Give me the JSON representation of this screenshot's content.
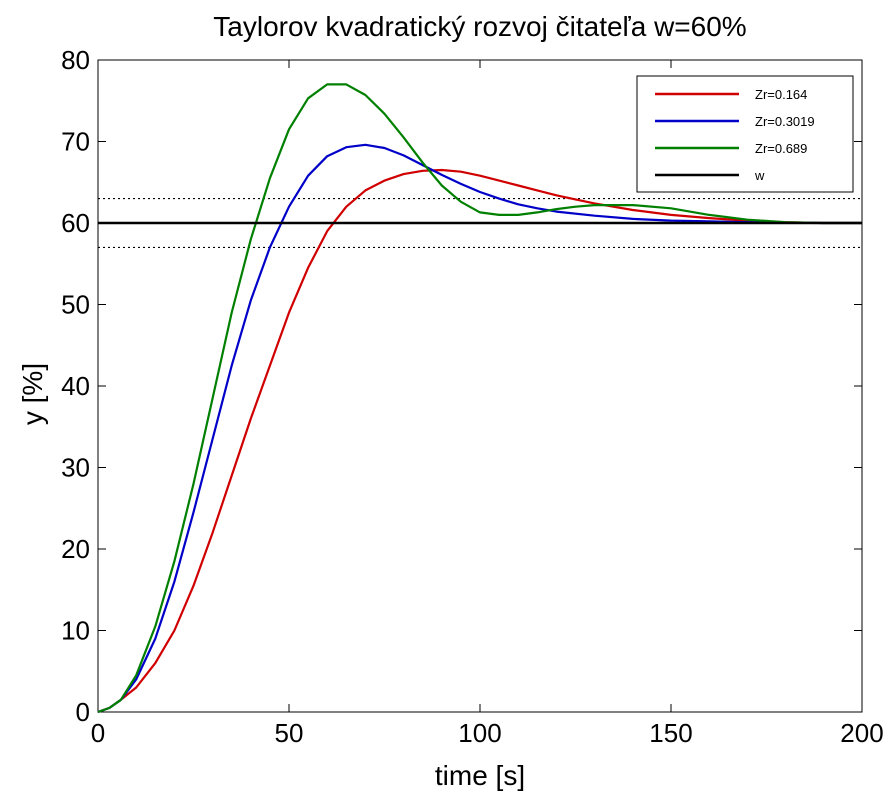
{
  "chart_data": {
    "type": "line",
    "title": "Taylorov kvadratický rozvoj čitateľa w=60%",
    "xlabel": "time [s]",
    "ylabel": "y [%]",
    "xlim": [
      0,
      200
    ],
    "ylim": [
      0,
      80
    ],
    "xticks": [
      "0",
      "50",
      "100",
      "150",
      "200"
    ],
    "yticks": [
      "0",
      "10",
      "20",
      "30",
      "40",
      "50",
      "60",
      "70",
      "80"
    ],
    "grid": false,
    "legend_position": "top-right",
    "setpoint": 60,
    "tolerance_band": [
      57,
      63
    ],
    "series": [
      {
        "name": "Zr=0.164",
        "color": "#d00000",
        "x": [
          0,
          3,
          6,
          10,
          15,
          20,
          25,
          30,
          35,
          40,
          45,
          50,
          55,
          60,
          65,
          70,
          75,
          80,
          85,
          90,
          95,
          100,
          105,
          110,
          115,
          120,
          125,
          130,
          140,
          150,
          160,
          170,
          180,
          190,
          200
        ],
        "y": [
          0,
          0.5,
          1.5,
          3,
          6,
          10,
          15.5,
          22,
          29,
          36,
          42.5,
          49,
          54.5,
          59,
          62,
          64,
          65.2,
          66,
          66.4,
          66.5,
          66.3,
          65.8,
          65.2,
          64.6,
          64.0,
          63.4,
          62.9,
          62.4,
          61.6,
          61.0,
          60.6,
          60.3,
          60.1,
          60.0,
          60.0
        ]
      },
      {
        "name": "Zr=0.3019",
        "color": "#0000c8",
        "x": [
          0,
          3,
          6,
          10,
          15,
          20,
          25,
          30,
          35,
          40,
          45,
          50,
          55,
          60,
          65,
          70,
          75,
          80,
          85,
          90,
          95,
          100,
          105,
          110,
          115,
          120,
          130,
          140,
          150,
          160,
          170,
          180,
          190,
          200
        ],
        "y": [
          0,
          0.5,
          1.5,
          4,
          9,
          16,
          24.5,
          33.5,
          42.5,
          50.5,
          57,
          62,
          65.8,
          68.2,
          69.3,
          69.6,
          69.2,
          68.3,
          67.1,
          65.9,
          64.8,
          63.8,
          63.0,
          62.3,
          61.8,
          61.4,
          60.9,
          60.5,
          60.3,
          60.2,
          60.1,
          60.05,
          60.0,
          60.0
        ]
      },
      {
        "name": "Zr=0.689",
        "color": "#008000",
        "x": [
          0,
          3,
          6,
          10,
          15,
          20,
          25,
          30,
          35,
          40,
          45,
          50,
          55,
          60,
          65,
          70,
          75,
          80,
          85,
          90,
          95,
          100,
          105,
          110,
          115,
          120,
          125,
          130,
          140,
          150,
          160,
          170,
          180,
          190,
          200
        ],
        "y": [
          0,
          0.5,
          1.5,
          4.5,
          10.5,
          18.5,
          28,
          38.5,
          49,
          58,
          65.5,
          71.5,
          75.3,
          77,
          77,
          75.7,
          73.4,
          70.5,
          67.4,
          64.6,
          62.6,
          61.3,
          61.0,
          61.0,
          61.3,
          61.7,
          62.0,
          62.2,
          62.2,
          61.8,
          61.0,
          60.4,
          60.1,
          60.0,
          60.0
        ]
      },
      {
        "name": "w",
        "color": "#000000",
        "x": [
          0,
          200
        ],
        "y": [
          60,
          60
        ]
      }
    ]
  }
}
